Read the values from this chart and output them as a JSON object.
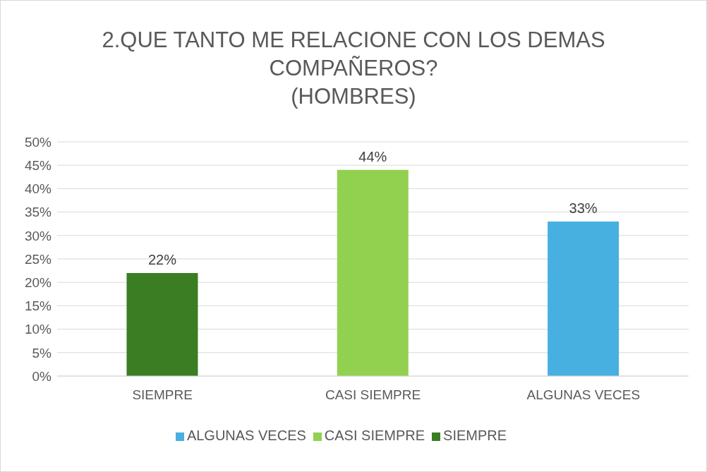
{
  "chart_data": {
    "type": "bar",
    "title": "2.QUE TANTO ME RELACIONE CON LOS DEMAS COMPAÑEROS?\n(HOMBRES)",
    "categories": [
      "SIEMPRE",
      "CASI SIEMPRE",
      "ALGUNAS VECES"
    ],
    "series": [
      {
        "name": "SIEMPRE",
        "color": "#3a7d22",
        "values": [
          22,
          null,
          null
        ],
        "value_labels": [
          "22%",
          null,
          null
        ]
      },
      {
        "name": "CASI SIEMPRE",
        "color": "#92d050",
        "values": [
          null,
          44,
          null
        ],
        "value_labels": [
          null,
          "44%",
          null
        ]
      },
      {
        "name": "ALGUNAS VECES",
        "color": "#47b0e0",
        "values": [
          null,
          null,
          33
        ],
        "value_labels": [
          null,
          null,
          "33%"
        ]
      }
    ],
    "stacked": true,
    "ylim": [
      0,
      50
    ],
    "yticks": [
      {
        "value": 0,
        "label": "0%"
      },
      {
        "value": 5,
        "label": "5%"
      },
      {
        "value": 10,
        "label": "10%"
      },
      {
        "value": 15,
        "label": "15%"
      },
      {
        "value": 20,
        "label": "20%"
      },
      {
        "value": 25,
        "label": "25%"
      },
      {
        "value": 30,
        "label": "30%"
      },
      {
        "value": 35,
        "label": "35%"
      },
      {
        "value": 40,
        "label": "40%"
      },
      {
        "value": 45,
        "label": "45%"
      },
      {
        "value": 50,
        "label": "50%"
      }
    ],
    "grid": "y",
    "legend": "bottom"
  }
}
